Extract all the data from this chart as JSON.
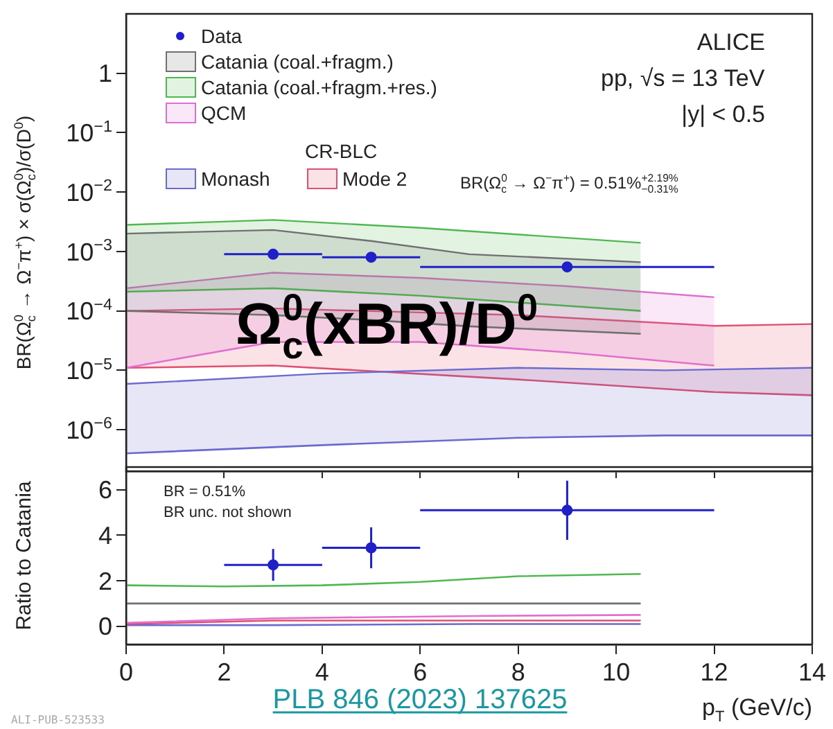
{
  "chart_data": [
    {
      "type": "line",
      "xlim": [
        0,
        14
      ],
      "xticks": [
        0,
        2,
        4,
        6,
        8,
        10,
        12,
        14
      ],
      "ylim": [
        2e-07,
        10
      ],
      "log": "y",
      "yticks": [
        {
          "value": 1e-06,
          "label": "10$^{−6}$"
        },
        {
          "value": 1e-05,
          "label": "10$^{−5}$"
        },
        {
          "value": 0.0001,
          "label": "10$^{−4}$"
        },
        {
          "value": 0.001,
          "label": "10$^{−3}$"
        },
        {
          "value": 0.01,
          "label": "10$^{−2}$"
        },
        {
          "value": 0.1,
          "label": "10$^{−1}$"
        },
        1
      ],
      "tick_labels": "y",
      "grid": false,
      "legend": "top left",
      "ylabel": "BR(Ω$_{c}$$^{0}$ → Ω$^{−}$π$^{+}$) × σ(Ω$_{c}$$^{0}$)/σ(D$^{0}$)",
      "annotations": [
        "ALICE",
        "pp, √s = 13 TeV",
        "|y| < 0.5",
        "CR-BLC",
        "BR(Ω$_{c}$$^{0}$ → Ω$^{−}$π$^{+}$) = 0.51%$^{+2.19%}$$_{−0.31%}$",
        "Ω$_{c}$$^{0}$(xBR)/D$^{0}$"
      ],
      "series": [
        {
          "name": "Data",
          "type": "scatter",
          "marker": "circle",
          "color": "#2020c8",
          "x": [
            3,
            5,
            9
          ],
          "values": [
            0.0009,
            0.0008,
            0.00055
          ],
          "xerrors": [
            1,
            1,
            3
          ]
        },
        {
          "name": "Catania (coal.+fragm.)",
          "type": "area",
          "color": "#707070",
          "x": [
            0,
            3,
            5,
            7,
            10.5
          ],
          "values": [
            0.002,
            0.0023,
            0.0015,
            0.0009,
            0.00066
          ]
        },
        {
          "type": "line",
          "color": "#707070",
          "x": [
            0,
            3,
            5,
            7,
            10.5
          ],
          "values": [
            0.0001,
            8.5e-05,
            7e-05,
            5.5e-05,
            4.1e-05
          ]
        },
        {
          "name": "Catania (coal.+fragm.+res.)",
          "type": "area",
          "color": "#50b850",
          "x": [
            0,
            3,
            6,
            10.5
          ],
          "values": [
            0.0028,
            0.0034,
            0.0025,
            0.0014
          ]
        },
        {
          "type": "line",
          "color": "#50b850",
          "x": [
            0,
            3,
            6,
            10.5
          ],
          "values": [
            0.00021,
            0.00024,
            0.00018,
            0.0001
          ]
        },
        {
          "name": "QCM",
          "type": "area",
          "color": "#e070d0",
          "x": [
            0,
            3,
            6,
            9,
            12
          ],
          "values": [
            0.00024,
            0.00044,
            0.00036,
            0.00026,
            0.00017
          ]
        },
        {
          "type": "line",
          "color": "#e070d0",
          "x": [
            0,
            3,
            6,
            9,
            12
          ],
          "values": [
            1.1e-05,
            3e-05,
            3e-05,
            2e-05,
            1.2e-05
          ]
        },
        {
          "name": "Monash",
          "type": "area",
          "color": "#6a6ad0",
          "x": [
            0,
            4,
            8,
            11,
            14
          ],
          "values": [
            5.9e-06,
            8.8e-06,
            1.1e-05,
            1e-05,
            1.1e-05
          ]
        },
        {
          "type": "line",
          "color": "#6a6ad0",
          "x": [
            0,
            4,
            8,
            11,
            14
          ],
          "values": [
            4e-07,
            5.5e-07,
            7.3e-07,
            8e-07,
            8e-07
          ]
        },
        {
          "name": "Mode 2",
          "type": "area",
          "color": "#e05070",
          "x": [
            0,
            3,
            8,
            12,
            14
          ],
          "values": [
            0.0001,
            0.00011,
            8.5e-05,
            5.6e-05,
            6e-05
          ]
        },
        {
          "type": "line",
          "color": "#e05070",
          "x": [
            0,
            3,
            8,
            12,
            14
          ],
          "values": [
            1.1e-05,
            1.2e-05,
            7e-06,
            4.3e-06,
            3.8e-06
          ]
        }
      ]
    },
    {
      "type": "line",
      "xlim": [
        0,
        14
      ],
      "xticks": [
        0,
        2,
        4,
        6,
        8,
        10,
        12,
        14
      ],
      "ylim": [
        -0.8,
        7
      ],
      "yticks": [
        0,
        2,
        4,
        6
      ],
      "grid": false,
      "xlabel": "p$_{T}$ (GeV/c)",
      "ylabel": "Ratio to Catania",
      "annotations": [
        "BR = 0.51%",
        "BR unc. not shown",
        "PLB 846 (2023) 137625",
        "ALI-PUB-523533"
      ],
      "series": [
        {
          "type": "scatter",
          "marker": "circle",
          "color": "#2020c8",
          "x": [
            3,
            5,
            9
          ],
          "values": [
            2.7,
            3.45,
            5.1
          ],
          "xerrors": [
            1,
            1,
            3
          ],
          "errors": [
            0.7,
            0.9,
            1.3
          ]
        },
        {
          "type": "line",
          "color": "#707070",
          "x": [
            0,
            10.5
          ],
          "values": [
            1,
            1
          ]
        },
        {
          "type": "line",
          "color": "#50b850",
          "x": [
            0,
            2,
            4,
            6,
            8,
            10.5
          ],
          "values": [
            1.8,
            1.75,
            1.8,
            1.95,
            2.2,
            2.3
          ]
        },
        {
          "type": "line",
          "color": "#e070d0",
          "x": [
            0,
            3,
            7,
            10.5
          ],
          "values": [
            0.15,
            0.35,
            0.45,
            0.5
          ]
        },
        {
          "type": "line",
          "color": "#e05070",
          "x": [
            0,
            3,
            7,
            10.5
          ],
          "values": [
            0.1,
            0.25,
            0.25,
            0.25
          ]
        },
        {
          "type": "line",
          "color": "#6a6ad0",
          "x": [
            0,
            3,
            7,
            10.5
          ],
          "values": [
            0.05,
            0.05,
            0.1,
            0.1
          ]
        }
      ]
    }
  ]
}
